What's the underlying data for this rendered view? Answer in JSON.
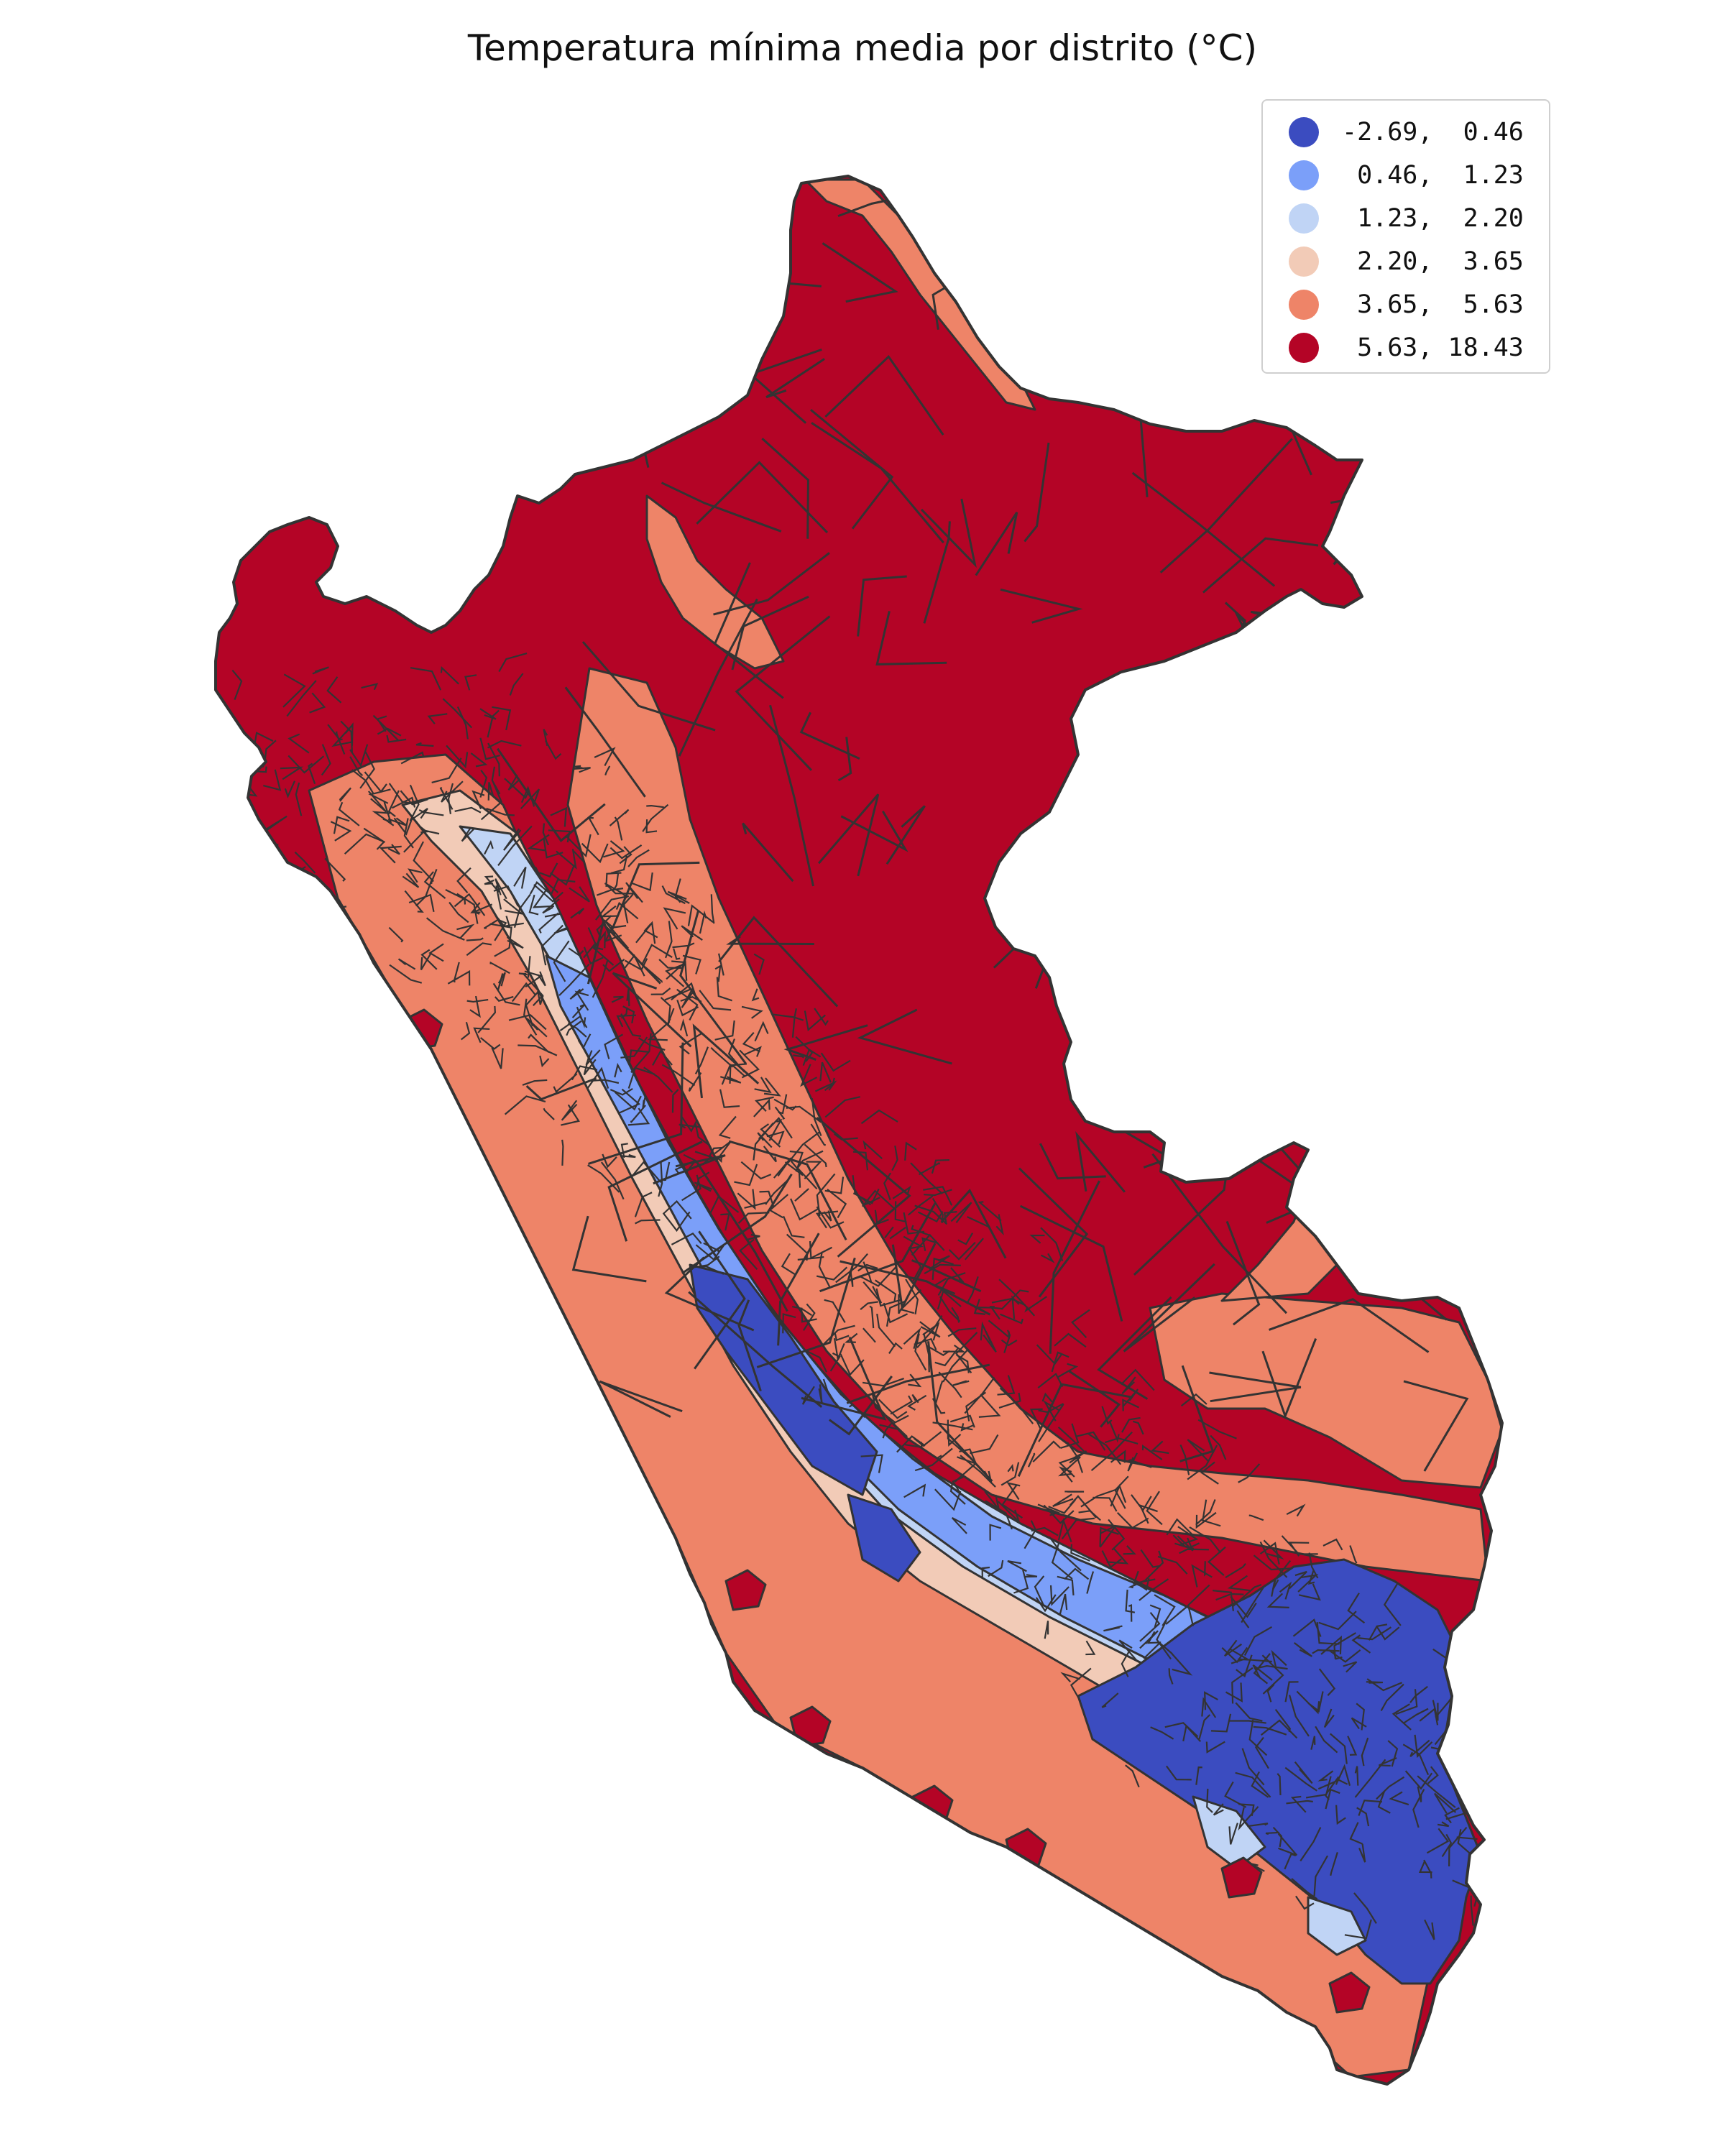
{
  "title": "Temperatura mínima media por distrito (°C)",
  "legend": {
    "classes": [
      {
        "label": "-2.69,  0.46",
        "color": "#3b4cc0"
      },
      {
        "label": " 0.46,  1.23",
        "color": "#7b9ff9"
      },
      {
        "label": " 1.23,  2.20",
        "color": "#c0d4f5"
      },
      {
        "label": " 2.20,  3.65",
        "color": "#f2cbb7"
      },
      {
        "label": " 3.65,  5.63",
        "color": "#ee8468"
      },
      {
        "label": " 5.63, 18.43",
        "color": "#b40426"
      }
    ]
  },
  "colors": {
    "border": "#333333",
    "q1": "#3b4cc0",
    "q2": "#7b9ff9",
    "q3": "#c0d4f5",
    "q4": "#f2cbb7",
    "q5": "#ee8468",
    "q6": "#b40426"
  }
}
